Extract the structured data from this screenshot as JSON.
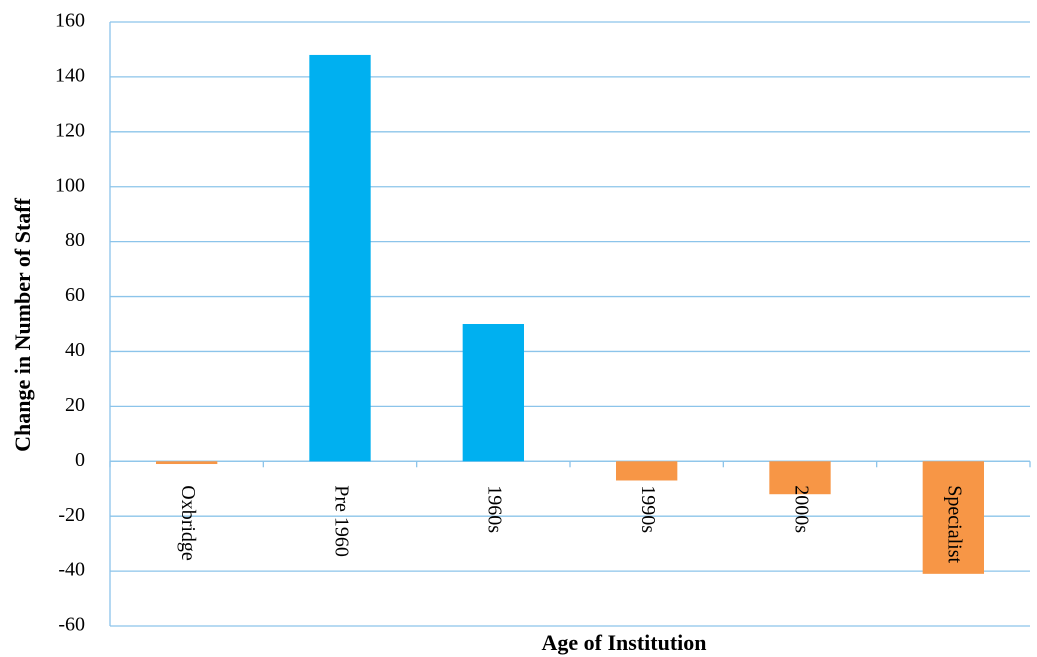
{
  "chart_data": {
    "type": "bar",
    "x_label": "Age of Institution",
    "y_label": "Change in Number of Staff",
    "categories": [
      "Oxbridge",
      "Pre 1960",
      "1960s",
      "1990s",
      "2000s",
      "Specialist"
    ],
    "values": [
      -1,
      148,
      50,
      -7,
      -12,
      -41
    ],
    "colors": [
      "#f79646",
      "#00b0f0",
      "#00b0f0",
      "#f79646",
      "#f79646",
      "#f79646"
    ],
    "ylim": [
      -60,
      160
    ],
    "yticks": [
      -60,
      -40,
      -20,
      0,
      20,
      40,
      60,
      80,
      100,
      120,
      140,
      160
    ],
    "grid": true
  }
}
